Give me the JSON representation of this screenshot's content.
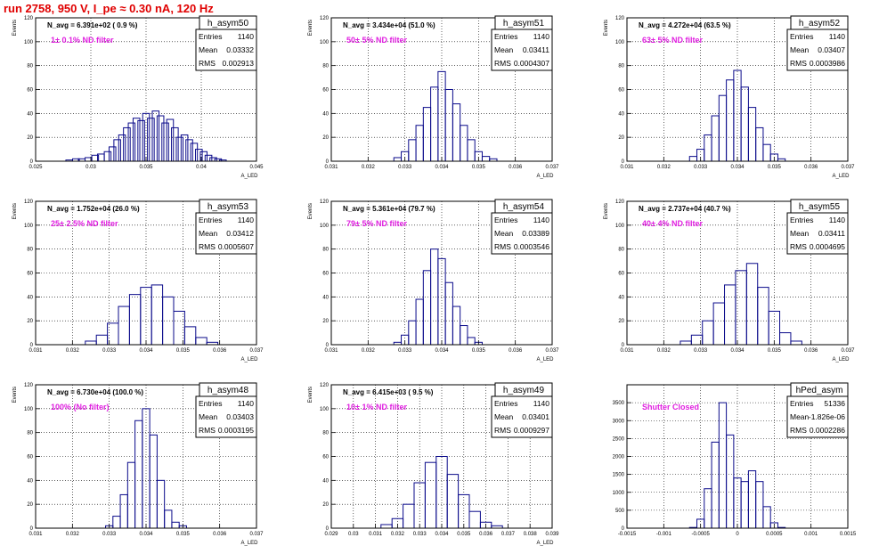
{
  "header": {
    "title": "run 2758,   950 V, I_pe ≈ 0.30 nA, 120 Hz"
  },
  "chart_data": [
    {
      "type": "bar",
      "name": "h_asym50",
      "title": "h_asym50",
      "stats": {
        "entries": "1140",
        "mean": "0.03332",
        "rms": "0.002913"
      },
      "navg": "N_avg = 6.391e+02 ( 0.9 %)",
      "annotation": "1± 0.1% ND filter",
      "xlabel": "A_LED",
      "ylabel": "Events",
      "xlim": [
        0.022,
        0.045
      ],
      "ylim": [
        0,
        120
      ],
      "xticks": [
        "0.025",
        "0.03",
        "0.035",
        "0.04",
        "0.045"
      ],
      "yticks": [
        "0",
        "20",
        "40",
        "60",
        "80",
        "100",
        "120"
      ],
      "x": [
        0.0255,
        0.0262,
        0.0268,
        0.0275,
        0.0282,
        0.0288,
        0.0295,
        0.03,
        0.0305,
        0.031,
        0.0315,
        0.032,
        0.0325,
        0.033,
        0.0335,
        0.034,
        0.0345,
        0.035,
        0.0355,
        0.036,
        0.0365,
        0.037,
        0.0375,
        0.038,
        0.0385,
        0.039,
        0.0395,
        0.04,
        0.0405,
        0.041,
        0.0415
      ],
      "values": [
        1,
        2,
        2,
        3,
        5,
        6,
        8,
        12,
        18,
        22,
        28,
        32,
        36,
        34,
        40,
        36,
        42,
        38,
        32,
        35,
        28,
        20,
        22,
        18,
        15,
        10,
        8,
        5,
        3,
        2,
        1
      ]
    },
    {
      "type": "bar",
      "name": "h_asym51",
      "title": "h_asym51",
      "stats": {
        "entries": "1140",
        "mean": "0.03411",
        "rms": "0.0004307"
      },
      "navg": "N_avg = 3.434e+04 (51.0 %)",
      "annotation": "50± 5% ND filter",
      "xlabel": "A_LED",
      "ylabel": "Events",
      "xlim": [
        0.031,
        0.037
      ],
      "ylim": [
        0,
        120
      ],
      "xticks": [
        "0.031",
        "0.032",
        "0.033",
        "0.034",
        "0.035",
        "0.036",
        "0.037"
      ],
      "yticks": [
        "0",
        "20",
        "40",
        "60",
        "80",
        "100",
        "120"
      ],
      "x": [
        0.0328,
        0.033,
        0.0332,
        0.0334,
        0.0336,
        0.0338,
        0.034,
        0.0342,
        0.0344,
        0.0346,
        0.0348,
        0.035,
        0.0352,
        0.0354
      ],
      "values": [
        3,
        8,
        18,
        30,
        45,
        62,
        75,
        60,
        48,
        30,
        18,
        8,
        4,
        2
      ]
    },
    {
      "type": "bar",
      "name": "h_asym52",
      "title": "h_asym52",
      "stats": {
        "entries": "1140",
        "mean": "0.03407",
        "rms": "0.0003986"
      },
      "navg": "N_avg = 4.272e+04 (63.5 %)",
      "annotation": "63± 5% ND filter",
      "xlabel": "A_LED",
      "ylabel": "Events",
      "xlim": [
        0.031,
        0.037
      ],
      "ylim": [
        0,
        120
      ],
      "xticks": [
        "0.031",
        "0.032",
        "0.033",
        "0.034",
        "0.035",
        "0.036",
        "0.037"
      ],
      "yticks": [
        "0",
        "20",
        "40",
        "60",
        "80",
        "100",
        "120"
      ],
      "x": [
        0.0328,
        0.033,
        0.0332,
        0.0334,
        0.0336,
        0.0338,
        0.034,
        0.0342,
        0.0344,
        0.0346,
        0.0348,
        0.035,
        0.0352
      ],
      "values": [
        4,
        10,
        22,
        38,
        55,
        68,
        76,
        62,
        45,
        28,
        14,
        6,
        2
      ]
    },
    {
      "type": "bar",
      "name": "h_asym53",
      "title": "h_asym53",
      "stats": {
        "entries": "1140",
        "mean": "0.03412",
        "rms": "0.0005607"
      },
      "navg": "N_avg = 1.752e+04 (26.0 %)",
      "annotation": "25± 2.5% ND filter",
      "xlabel": "A_LED",
      "ylabel": "Events",
      "xlim": [
        0.031,
        0.037
      ],
      "ylim": [
        0,
        120
      ],
      "xticks": [
        "0.031",
        "0.032",
        "0.033",
        "0.034",
        "0.035",
        "0.036",
        "0.037"
      ],
      "yticks": [
        "0",
        "20",
        "40",
        "60",
        "80",
        "100",
        "120"
      ],
      "x": [
        0.0325,
        0.0328,
        0.0331,
        0.0334,
        0.0337,
        0.034,
        0.0343,
        0.0346,
        0.0349,
        0.0352,
        0.0355,
        0.0358
      ],
      "values": [
        3,
        8,
        18,
        32,
        42,
        48,
        50,
        40,
        28,
        15,
        6,
        2
      ]
    },
    {
      "type": "bar",
      "name": "h_asym54",
      "title": "h_asym54",
      "stats": {
        "entries": "1140",
        "mean": "0.03389",
        "rms": "0.0003546"
      },
      "navg": "N_avg = 5.361e+04 (79.7 %)",
      "annotation": "79± 5% ND filter",
      "xlabel": "A_LED",
      "ylabel": "Events",
      "xlim": [
        0.031,
        0.037
      ],
      "ylim": [
        0,
        120
      ],
      "xticks": [
        "0.031",
        "0.032",
        "0.033",
        "0.034",
        "0.035",
        "0.036",
        "0.037"
      ],
      "yticks": [
        "0",
        "20",
        "40",
        "60",
        "80",
        "100",
        "120"
      ],
      "x": [
        0.0328,
        0.033,
        0.0332,
        0.0334,
        0.0336,
        0.0338,
        0.034,
        0.0342,
        0.0344,
        0.0346,
        0.0348,
        0.035
      ],
      "values": [
        2,
        8,
        20,
        38,
        62,
        80,
        72,
        52,
        32,
        16,
        6,
        2
      ]
    },
    {
      "type": "bar",
      "name": "h_asym55",
      "title": "h_asym55",
      "stats": {
        "entries": "1140",
        "mean": "0.03411",
        "rms": "0.0004695"
      },
      "navg": "N_avg = 2.737e+04 (40.7 %)",
      "annotation": "40± 4% ND filter",
      "xlabel": "A_LED",
      "ylabel": "Events",
      "xlim": [
        0.031,
        0.037
      ],
      "ylim": [
        0,
        120
      ],
      "xticks": [
        "0.031",
        "0.032",
        "0.033",
        "0.034",
        "0.035",
        "0.036",
        "0.037"
      ],
      "yticks": [
        "0",
        "20",
        "40",
        "60",
        "80",
        "100",
        "120"
      ],
      "x": [
        0.0326,
        0.0329,
        0.0332,
        0.0335,
        0.0338,
        0.0341,
        0.0344,
        0.0347,
        0.035,
        0.0353,
        0.0356
      ],
      "values": [
        3,
        8,
        20,
        35,
        50,
        62,
        68,
        48,
        28,
        10,
        3
      ]
    },
    {
      "type": "bar",
      "name": "h_asym48",
      "title": "h_asym48",
      "stats": {
        "entries": "1140",
        "mean": "0.03403",
        "rms": "0.0003195"
      },
      "navg": "N_avg = 6.730e+04 (100.0 %)",
      "annotation": "100% (No filter)",
      "xlabel": "A_LED",
      "ylabel": "Events",
      "xlim": [
        0.031,
        0.037
      ],
      "ylim": [
        0,
        120
      ],
      "xticks": [
        "0.031",
        "0.032",
        "0.033",
        "0.034",
        "0.035",
        "0.036",
        "0.037"
      ],
      "yticks": [
        "0",
        "20",
        "40",
        "60",
        "80",
        "100",
        "120"
      ],
      "x": [
        0.033,
        0.0332,
        0.0334,
        0.0336,
        0.0338,
        0.034,
        0.0342,
        0.0344,
        0.0346,
        0.0348,
        0.035
      ],
      "values": [
        2,
        10,
        28,
        55,
        90,
        100,
        78,
        40,
        15,
        5,
        2
      ]
    },
    {
      "type": "bar",
      "name": "h_asym49",
      "title": "h_asym49",
      "stats": {
        "entries": "1140",
        "mean": "0.03401",
        "rms": "0.0009297"
      },
      "navg": "N_avg = 6.415e+03 ( 9.5 %)",
      "annotation": "10± 1% ND filter",
      "xlabel": "A_LED",
      "ylabel": "Events",
      "xlim": [
        0.029,
        0.039
      ],
      "ylim": [
        0,
        120
      ],
      "xticks": [
        "0.029",
        "0.03",
        "0.031",
        "0.032",
        "0.033",
        "0.034",
        "0.035",
        "0.036",
        "0.037",
        "0.038",
        "0.039"
      ],
      "yticks": [
        "0",
        "20",
        "40",
        "60",
        "80",
        "100",
        "120"
      ],
      "x": [
        0.0315,
        0.032,
        0.0325,
        0.033,
        0.0335,
        0.034,
        0.0345,
        0.035,
        0.0355,
        0.036,
        0.0365
      ],
      "values": [
        3,
        8,
        20,
        38,
        55,
        60,
        45,
        28,
        14,
        5,
        2
      ]
    },
    {
      "type": "bar",
      "name": "hPed_asym",
      "title": "hPed_asym",
      "stats": {
        "entries": "51336",
        "mean": "-1.826e-06",
        "rms": "0.0002286"
      },
      "navg": "",
      "annotation": "Shutter Closed",
      "xlabel": "",
      "ylabel": "",
      "xlim": [
        -0.0015,
        0.0015
      ],
      "ylim": [
        0,
        4000
      ],
      "xticks": [
        "-0.0015",
        "-0.001",
        "-0.0005",
        "0",
        "0.0005",
        "0.001",
        "0.0015"
      ],
      "yticks": [
        "0",
        "500",
        "1000",
        "1500",
        "2000",
        "2500",
        "3000",
        "3500"
      ],
      "x": [
        -0.0006,
        -0.0005,
        -0.0004,
        -0.0003,
        -0.0002,
        -0.0001,
        0.0,
        0.0001,
        0.0002,
        0.0003,
        0.0004,
        0.0005,
        0.0006
      ],
      "values": [
        20,
        250,
        1100,
        2400,
        3500,
        2600,
        1400,
        1300,
        1600,
        1300,
        600,
        150,
        20
      ]
    }
  ]
}
